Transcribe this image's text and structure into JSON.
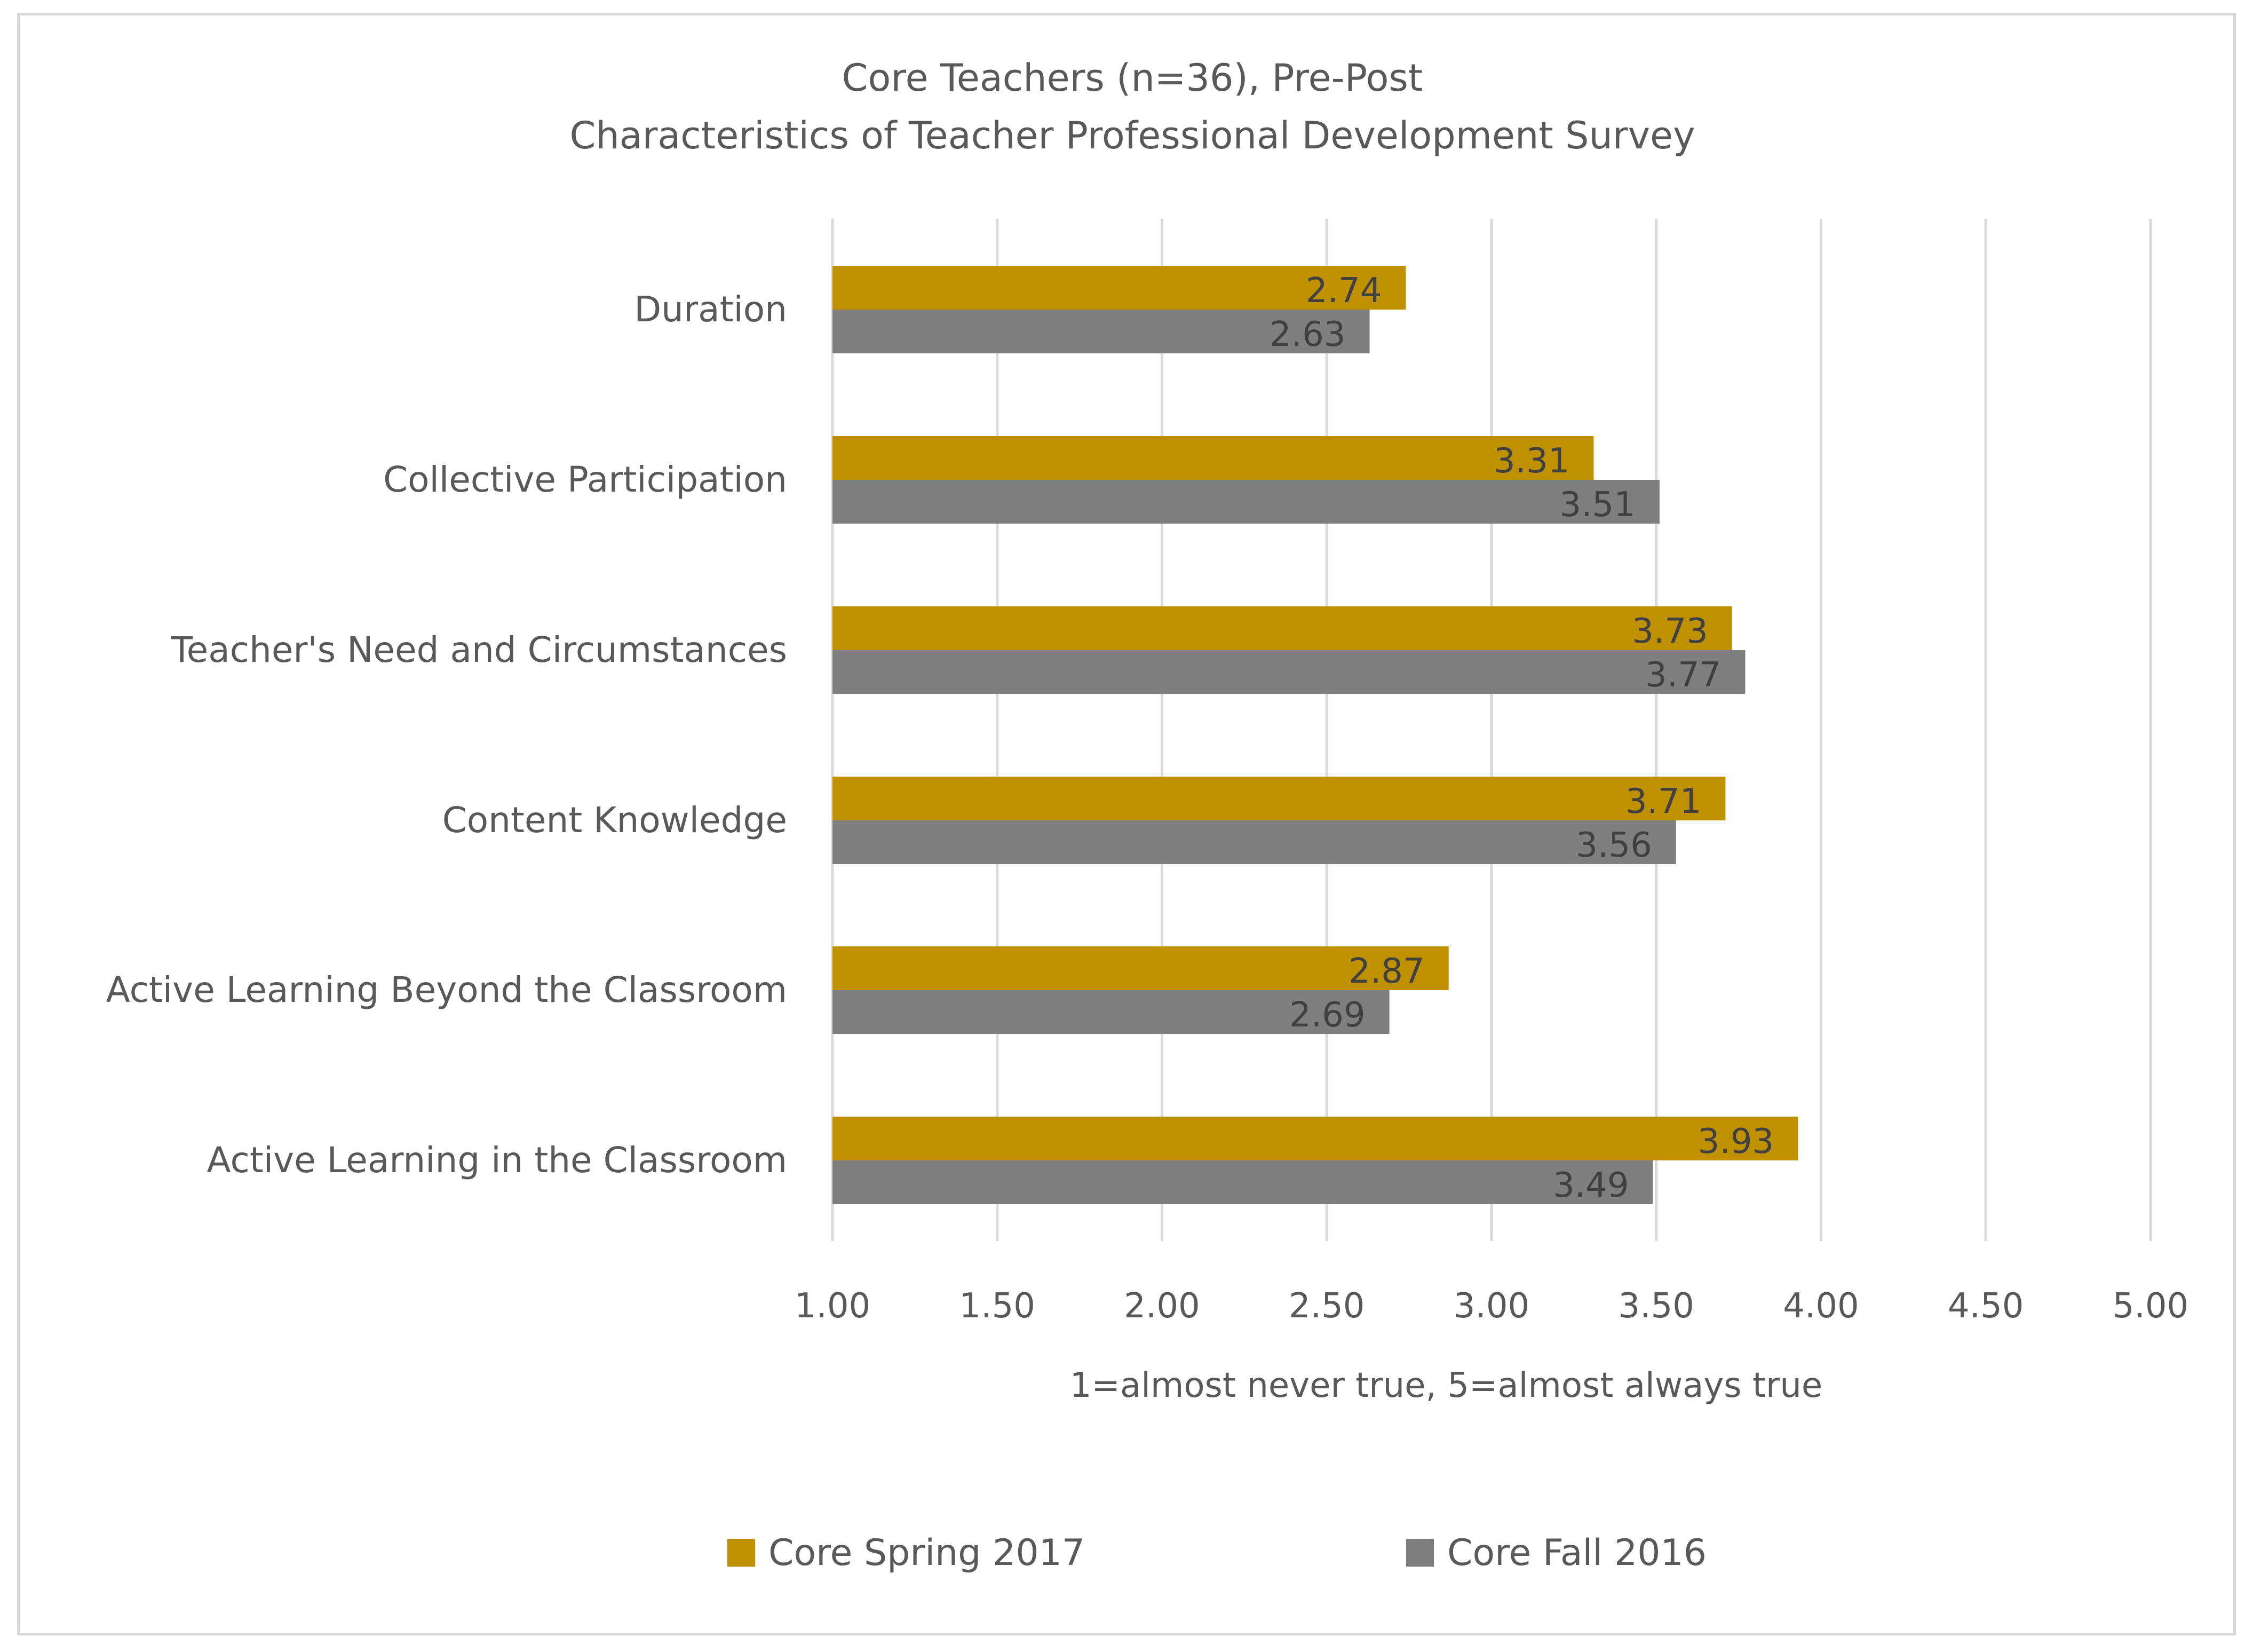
{
  "chart_data": {
    "type": "bar",
    "orientation": "horizontal",
    "title": "Core Teachers (n=36), Pre-Post",
    "subtitle": "Characteristics of Teacher Professional Development Survey",
    "xlabel": "1=almost never true, 5=almost always true",
    "ylabel": "",
    "xlim": [
      1.0,
      5.0
    ],
    "x_ticks": [
      "1.00",
      "1.50",
      "2.00",
      "2.50",
      "3.00",
      "3.50",
      "4.00",
      "4.50",
      "5.00"
    ],
    "grid": true,
    "legend_position": "bottom",
    "categories": [
      "Duration",
      "Collective Participation",
      "Teacher's Need and Circumstances",
      "Content Knowledge",
      "Active Learning Beyond the Classroom",
      "Active Learning in the Classroom"
    ],
    "series": [
      {
        "name": "Core Spring 2017",
        "color": "#bf9000",
        "values": [
          2.74,
          3.31,
          3.73,
          3.71,
          2.87,
          3.93
        ],
        "labels": [
          "2.74",
          "3.31",
          "3.73",
          "3.71",
          "2.87",
          "3.93"
        ]
      },
      {
        "name": "Core Fall 2016",
        "color": "#7f7f7f",
        "values": [
          2.63,
          3.51,
          3.77,
          3.56,
          2.69,
          3.49
        ],
        "labels": [
          "2.63",
          "3.51",
          "3.77",
          "3.56",
          "2.69",
          "3.49"
        ]
      }
    ]
  },
  "style": {
    "gridline_color": "#d9d9d9",
    "text_color": "#595959",
    "data_label_color": "#404040"
  }
}
